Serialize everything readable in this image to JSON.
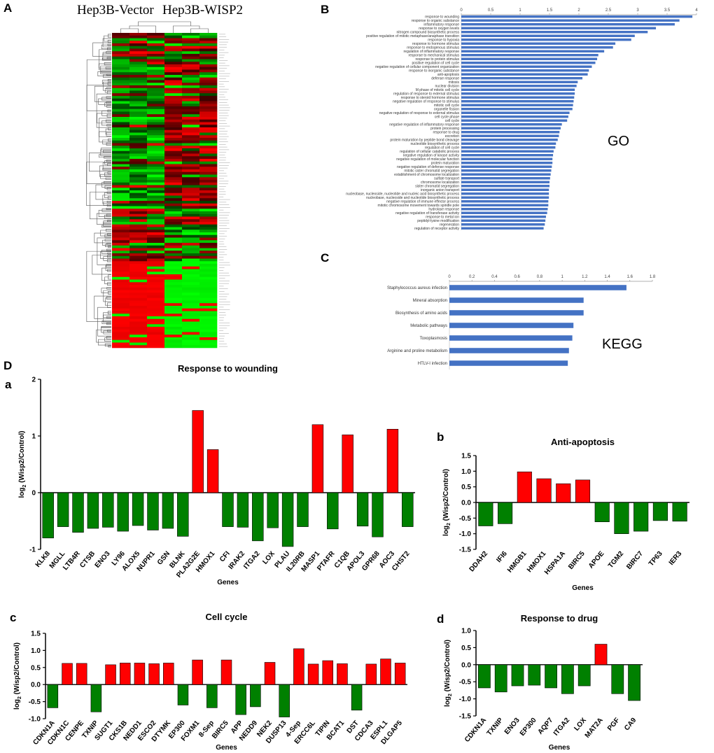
{
  "panels": {
    "A": "A",
    "B": "B",
    "C": "C",
    "D": "D",
    "a": "a",
    "b": "b",
    "c": "c",
    "d": "d"
  },
  "heatmap": {
    "title_left": "Hep3B-Vector",
    "title_right": "Hep3B-WISP2",
    "columns": 6,
    "rows": 120,
    "colors": {
      "up": "#ff0000",
      "down": "#00ff00",
      "neutral": "#000000"
    }
  },
  "go_tag": "GO",
  "kegg_tag": "KEGG",
  "chart_data": [
    {
      "id": "go",
      "type": "bar",
      "orientation": "horizontal",
      "color": "#4472c4",
      "xlim": [
        0,
        4
      ],
      "ticks": [
        "0",
        "0.5",
        "1",
        "1.5",
        "2",
        "2.5",
        "3",
        "3.5",
        "4"
      ],
      "categories": [
        "response to wounding",
        "response to organic substance",
        "inflammatory response",
        "response to oxygen levels",
        "nitrogen compound biosynthetic process",
        "positive regulation of mitotic metaphase/anaphase transition",
        "response to hypoxia",
        "response to hormone stimulus",
        "response to endogenous stimulus",
        "regulation of inflammatory response",
        "response to mechanical stimulus",
        "response to protein stimulus",
        "positive regulation of cell cycle",
        "negative regulation of cellular component organization",
        "response to inorganic substance",
        "anti-apoptosis",
        "defense response",
        "mitosis",
        "nuclear division",
        "M phase of mitotic cell cycle",
        "regulation of response to external stimulus",
        "response to steroid hormone stimulus",
        "negative regulation of response to stimulus",
        "mitotic cell cycle",
        "organelle fission",
        "negative regulation of response to external stimulus",
        "cell cycle phase",
        "cell cycle",
        "negative regulation of inflammatory response",
        "protein processing",
        "response to drug",
        "excretion",
        "protein maturation by peptide bond cleavage",
        "nucleotide biosynthetic process",
        "regulation of cell cycle",
        "regulation of cellular catabolic process",
        "negative regulation of kinase activity",
        "negative regulation of molecular function",
        "protein maturation",
        "negative regulation of defense response",
        "mitotic sister chromatid segregation",
        "establishment of chromosome localization",
        "sulfate transport",
        "chromosome localization",
        "sister chromatid segregation",
        "inorganic anion transport",
        "nucleobase, nucleoside, nucleotide and nucleic acid biosynthetic process",
        "nucleobase, nucleoside and nucleotide biosynthetic process",
        "negative regulation of immune effector process",
        "mitotic chromosome movement towards spindle pole",
        "hydrolase response",
        "negative regulation of transferase activity",
        "response to metal ion",
        "peptidyl-lysine modification",
        "regeneration",
        "regulation of receptor activity"
      ],
      "values": [
        3.93,
        3.71,
        3.63,
        3.31,
        3.17,
        2.95,
        2.89,
        2.62,
        2.58,
        2.43,
        2.33,
        2.31,
        2.28,
        2.22,
        2.17,
        2.15,
        2.06,
        1.98,
        1.96,
        1.93,
        1.93,
        1.92,
        1.91,
        1.9,
        1.89,
        1.84,
        1.82,
        1.8,
        1.71,
        1.69,
        1.67,
        1.66,
        1.64,
        1.61,
        1.6,
        1.57,
        1.56,
        1.55,
        1.55,
        1.54,
        1.53,
        1.52,
        1.51,
        1.5,
        1.5,
        1.49,
        1.49,
        1.49,
        1.48,
        1.48,
        1.47,
        1.46,
        1.44,
        1.43,
        1.42,
        1.4
      ]
    },
    {
      "id": "kegg",
      "type": "bar",
      "orientation": "horizontal",
      "color": "#4472c4",
      "xlim": [
        0,
        1.8
      ],
      "ticks": [
        "0",
        "0.2",
        "0.4",
        "0.6",
        "0.8",
        "1",
        "1.2",
        "1.4",
        "1.6",
        "1.8"
      ],
      "categories": [
        "Staphylococcus aureus infection",
        "Mineral absorption",
        "Biosynthesis of amino acids",
        "Metabolic pathways",
        "Toxoplasmosis",
        "Arginine and proline metabolism",
        "HTLV-I infection"
      ],
      "values": [
        1.57,
        1.19,
        1.19,
        1.1,
        1.09,
        1.06,
        1.05
      ]
    },
    {
      "id": "wounding",
      "type": "bar",
      "title": "Response to wounding",
      "xlabel": "Genes",
      "ylabel_main": "log",
      "ylabel_sub": "2",
      "ylabel_rest": " (Wisp2/Control)",
      "ylim": [
        -1,
        2
      ],
      "yticks": [
        "-1",
        "0",
        "1",
        "2"
      ],
      "colors": {
        "positive": "#ff0000",
        "negative": "#008000"
      },
      "categories": [
        "KLK8",
        "MGLL",
        "LTB4R",
        "CTSB",
        "ENO3",
        "LY96",
        "ALOX5",
        "NUPR1",
        "GSN",
        "BLNK",
        "PLA2G2E",
        "HMOX1",
        "CFI",
        "IRAK2",
        "ITGA2",
        "LOX",
        "PLAU",
        "IL20RB",
        "MASP1",
        "PTAFR",
        "C1QB",
        "APOL3",
        "GPR68",
        "AOC3",
        "CHST2"
      ],
      "values": [
        -0.8,
        -0.6,
        -0.7,
        -0.63,
        -0.61,
        -0.68,
        -0.58,
        -0.66,
        -0.63,
        -0.77,
        1.45,
        0.76,
        -0.6,
        -0.61,
        -0.85,
        -0.62,
        -0.95,
        -0.6,
        1.2,
        -0.64,
        1.02,
        -0.59,
        -0.78,
        1.12,
        -0.6
      ]
    },
    {
      "id": "antiapoptosis",
      "type": "bar",
      "title": "Anti-apoptosis",
      "xlabel": "Genes",
      "ylabel_main": "log",
      "ylabel_sub": "2",
      "ylabel_rest": " (Wisp2/Control)",
      "ylim": [
        -1.5,
        1.5
      ],
      "yticks": [
        "-1.5",
        "-1.0",
        "-0.5",
        "0.0",
        "0.5",
        "1.0",
        "1.5"
      ],
      "colors": {
        "positive": "#ff0000",
        "negative": "#008000"
      },
      "categories": [
        "DDAH2",
        "IFI6",
        "HMGB1",
        "HMOX1",
        "HSPA1A",
        "BIRC5",
        "APOE",
        "TGM2",
        "BIRC7",
        "TP63",
        "IER3"
      ],
      "values": [
        -0.75,
        -0.68,
        0.98,
        0.76,
        0.6,
        0.72,
        -0.62,
        -1.0,
        -0.92,
        -0.58,
        -0.6
      ]
    },
    {
      "id": "cellcycle",
      "type": "bar",
      "title": "Cell cycle",
      "xlabel": "Genes",
      "ylabel_main": "log",
      "ylabel_sub": "2",
      "ylabel_rest": " (Wisp2/Control)",
      "ylim": [
        -1.0,
        1.5
      ],
      "yticks": [
        "-1.0",
        "-0.5",
        "0.0",
        "0.5",
        "1.0",
        "1.5"
      ],
      "colors": {
        "positive": "#ff0000",
        "negative": "#008000"
      },
      "categories": [
        "CDKN1A",
        "CDKN1C",
        "CENPE",
        "TXNIP",
        "SUGT1",
        "CKS1B",
        "NEDD1",
        "ESCO2",
        "DTYMK",
        "EP300",
        "FOXM1",
        "8-Sep",
        "BIRC5",
        "APP",
        "NEDD9",
        "NEK2",
        "DUSP13",
        "4-Sep",
        "ERCC6L",
        "TIPIN",
        "BCAT1",
        "DST",
        "CDCA3",
        "ESPL1",
        "DLGAP5"
      ],
      "values": [
        -0.68,
        0.62,
        0.62,
        -0.8,
        0.58,
        0.63,
        0.63,
        0.61,
        0.63,
        -0.6,
        0.72,
        -0.68,
        0.72,
        -0.88,
        -0.65,
        0.65,
        -0.95,
        1.05,
        0.6,
        0.7,
        0.61,
        -0.75,
        0.6,
        0.75,
        0.63
      ]
    },
    {
      "id": "drug",
      "type": "bar",
      "title": "Response to drug",
      "xlabel": "Genes",
      "ylabel_main": "log",
      "ylabel_sub": "2",
      "ylabel_rest": " (Wisp2/Control)",
      "ylim": [
        -1.5,
        1.0
      ],
      "yticks": [
        "-1.5",
        "-1.0",
        "-0.5",
        "0.0",
        "0.5",
        "1.0"
      ],
      "colors": {
        "positive": "#ff0000",
        "negative": "#008000"
      },
      "categories": [
        "CDKN1A",
        "TXNIP",
        "ENO3",
        "EP300",
        "AQP7",
        "ITGA2",
        "LOX",
        "MAT2A",
        "PGF",
        "CA9"
      ],
      "values": [
        -0.68,
        -0.8,
        -0.62,
        -0.6,
        -0.68,
        -0.85,
        -0.62,
        0.6,
        -0.85,
        -1.05
      ]
    }
  ]
}
